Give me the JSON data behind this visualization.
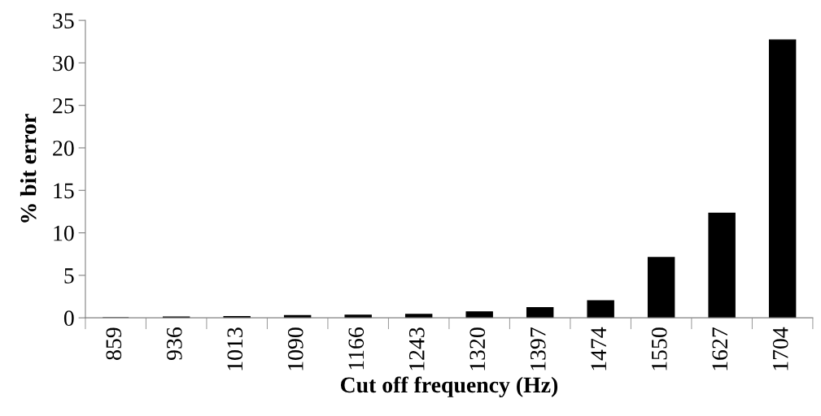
{
  "chart_data": {
    "type": "bar",
    "xlabel": "Cut off frequency (Hz)",
    "ylabel": "% bit error",
    "categories": [
      "859",
      "936",
      "1013",
      "1090",
      "1166",
      "1243",
      "1320",
      "1397",
      "1474",
      "1550",
      "1627",
      "1704"
    ],
    "values": [
      0,
      0.1,
      0.15,
      0.25,
      0.3,
      0.4,
      0.7,
      1.2,
      2.0,
      7.1,
      12.3,
      32.7
    ],
    "color": "#000000",
    "ylim": [
      0,
      35
    ],
    "yticks": [
      0,
      5,
      10,
      15,
      20,
      25,
      30,
      35
    ],
    "grid": false
  }
}
